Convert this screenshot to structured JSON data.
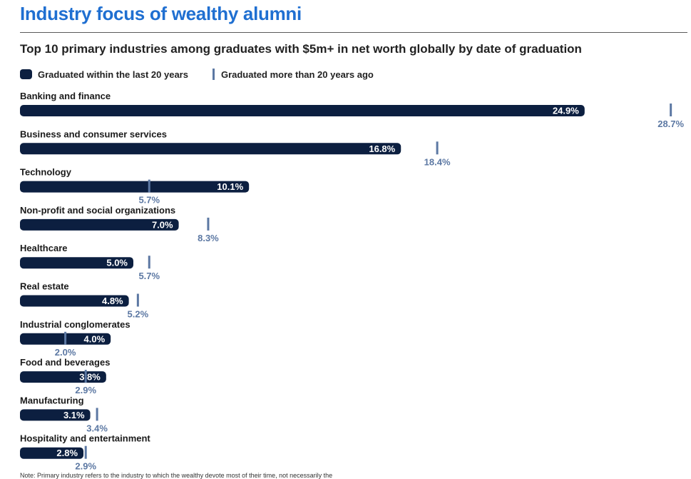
{
  "title": "Industry focus of wealthy alumni",
  "subtitle": "Top 10 primary industries among graduates with $5m+ in net worth globally by date of graduation",
  "note": "Note: Primary industry refers to the industry to which the wealthy devote most of their time, not necessarily the",
  "colors": {
    "title": "#1f6fd1",
    "recent_bar": "#0c1f40",
    "older_marker": "#5c78a3"
  },
  "chart_data": {
    "type": "bar",
    "orientation": "horizontal",
    "title": "Industry focus of wealthy alumni",
    "subtitle": "Top 10 primary industries among graduates with $5m+ in net worth globally by date of graduation",
    "categories": [
      "Banking and finance",
      "Business and consumer services",
      "Technology",
      "Non-profit and social organizations",
      "Healthcare",
      "Real estate",
      "Industrial conglomerates",
      "Food and beverages",
      "Manufacturing",
      "Hospitality and entertainment"
    ],
    "series": [
      {
        "name": "Graduated within the last 20 years",
        "values": [
          24.9,
          16.8,
          10.1,
          7.0,
          5.0,
          4.8,
          4.0,
          3.8,
          3.1,
          2.8
        ],
        "mark": "bar"
      },
      {
        "name": "Graduated more than 20 years ago",
        "values": [
          28.7,
          18.4,
          5.7,
          8.3,
          5.7,
          5.2,
          2.0,
          2.9,
          3.4,
          2.9
        ],
        "mark": "tick"
      }
    ],
    "value_suffix": "%",
    "legend_position": "top-left",
    "grid": false
  }
}
